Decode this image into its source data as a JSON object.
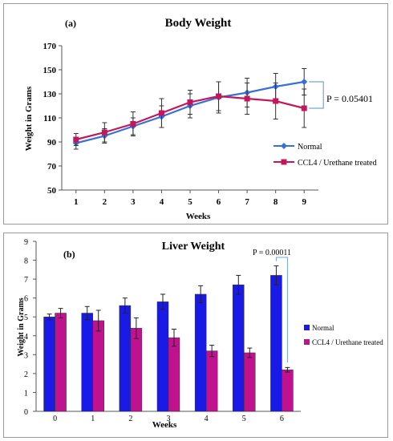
{
  "chart_data": [
    {
      "type": "line",
      "panel_label": "(a)",
      "title": "Body Weight",
      "xlabel": "Weeks",
      "ylabel": "Weight in Grams",
      "x": [
        1,
        2,
        3,
        4,
        5,
        6,
        7,
        8,
        9
      ],
      "ylim": [
        50,
        170
      ],
      "yticks": [
        50,
        70,
        90,
        110,
        130,
        150,
        170
      ],
      "grid": false,
      "legend_position": "right",
      "series": [
        {
          "name": "Normal",
          "color": "#3a6fd8",
          "marker": "diamond",
          "values": [
            89,
            95,
            103,
            111,
            120,
            127,
            131,
            136,
            140
          ],
          "errors": [
            5,
            6,
            7,
            9,
            10,
            13,
            12,
            11,
            11
          ]
        },
        {
          "name": "CCL4 / Urethane treated",
          "color": "#c2185b",
          "marker": "square",
          "values": [
            92,
            98,
            105,
            114,
            123,
            128,
            126,
            124,
            118
          ],
          "errors": [
            5,
            8,
            10,
            12,
            10,
            12,
            13,
            15,
            16
          ]
        }
      ],
      "annotation": "P = 0.05401"
    },
    {
      "type": "bar",
      "panel_label": "(b)",
      "title": "Liver Weight",
      "xlabel": "Weeks",
      "ylabel": "Weight in Grams",
      "categories": [
        "0",
        "1",
        "2",
        "3",
        "4",
        "5",
        "6"
      ],
      "ylim": [
        0,
        9
      ],
      "yticks": [
        0,
        1,
        2,
        3,
        4,
        5,
        6,
        7,
        8,
        9
      ],
      "grid": false,
      "legend_position": "right",
      "series": [
        {
          "name": "Normal",
          "color": "#1a1ae6",
          "values": [
            5.0,
            5.2,
            5.6,
            5.8,
            6.2,
            6.7,
            7.2
          ],
          "errors": [
            0.15,
            0.35,
            0.4,
            0.4,
            0.45,
            0.5,
            0.5
          ]
        },
        {
          "name": "CCL4 / Urethane treated",
          "color": "#c0118e",
          "values": [
            5.2,
            4.8,
            4.4,
            3.9,
            3.2,
            3.1,
            2.2
          ],
          "errors": [
            0.25,
            0.55,
            0.55,
            0.45,
            0.3,
            0.25,
            0.12
          ]
        }
      ],
      "annotation": "P = 0.00011"
    }
  ]
}
